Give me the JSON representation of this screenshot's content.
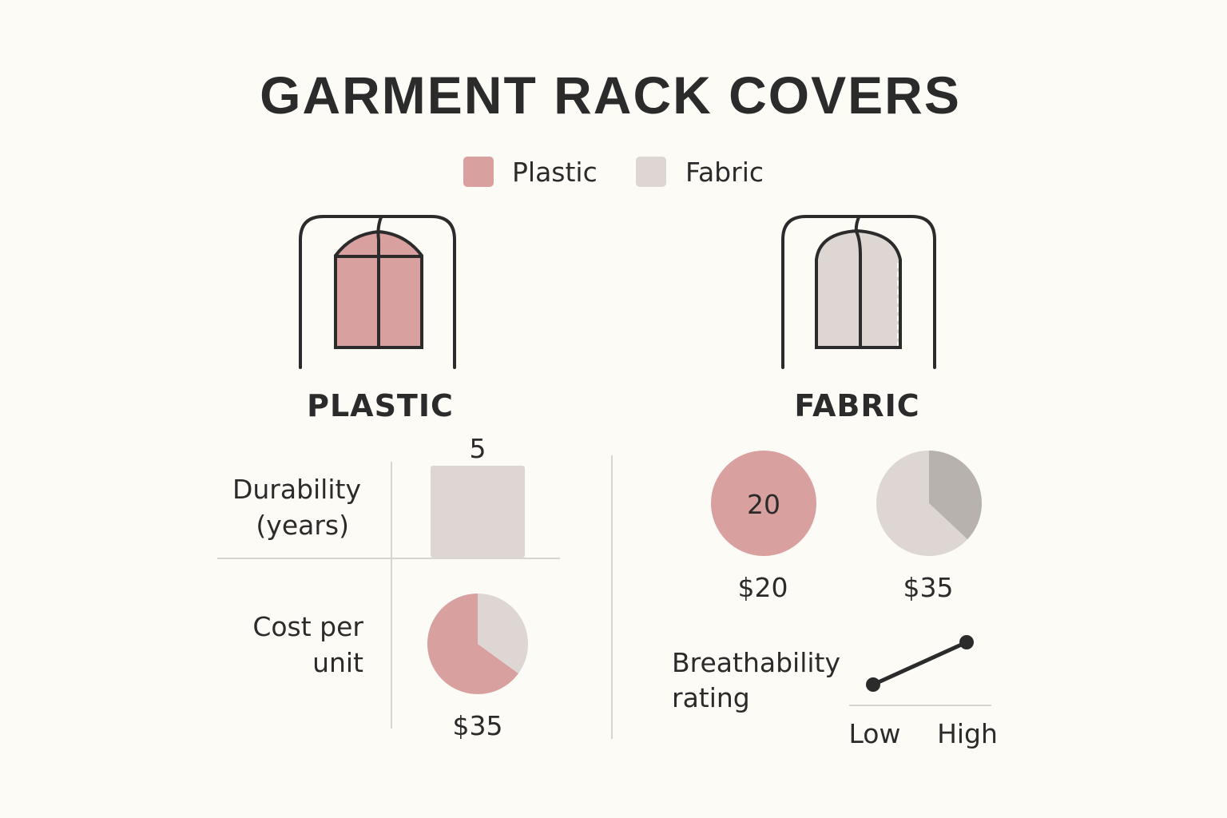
{
  "title": "GARMENT RACK COVERS",
  "colors": {
    "plastic": "#d9a0a0",
    "fabric": "#ddd6d2",
    "fabric_dark": "#b8b2ae",
    "ink": "#2b2b2b",
    "background": "#fdfbf6"
  },
  "legend": [
    {
      "label": "Plastic",
      "color": "#d9a0a0"
    },
    {
      "label": "Fabric",
      "color": "#ddd6d2"
    }
  ],
  "icons": {
    "plastic": "garment-rack-plastic-cover-icon",
    "fabric": "garment-rack-fabric-cover-icon"
  },
  "sections": {
    "plastic": "PLASTIC",
    "fabric": "FABRIC"
  },
  "chart_data": [
    {
      "type": "bar",
      "title": "",
      "ylabel_lines": [
        "Durability",
        "(years)"
      ],
      "values": [
        5
      ],
      "data_labels": [
        "5"
      ]
    },
    {
      "type": "pie",
      "label_lines": [
        "Cost per",
        "unit"
      ],
      "slices": [
        {
          "color": "#d9a0a0",
          "fraction": 0.65
        },
        {
          "color": "#ddd6d2",
          "fraction": 0.35
        }
      ],
      "data_label": "$35"
    },
    {
      "type": "pie",
      "slices": [
        {
          "color": "#d9a0a0",
          "fraction": 1.0
        }
      ],
      "center_label": "20",
      "data_label": "$20"
    },
    {
      "type": "pie",
      "slices": [
        {
          "color": "#ddd6d2",
          "fraction": 0.63
        },
        {
          "color": "#b8b2ae",
          "fraction": 0.37
        }
      ],
      "data_label": "$35"
    },
    {
      "type": "line",
      "label_lines": [
        "Breathability",
        "rating"
      ],
      "categories": [
        "Low",
        "High"
      ],
      "values": [
        1,
        2
      ]
    }
  ]
}
